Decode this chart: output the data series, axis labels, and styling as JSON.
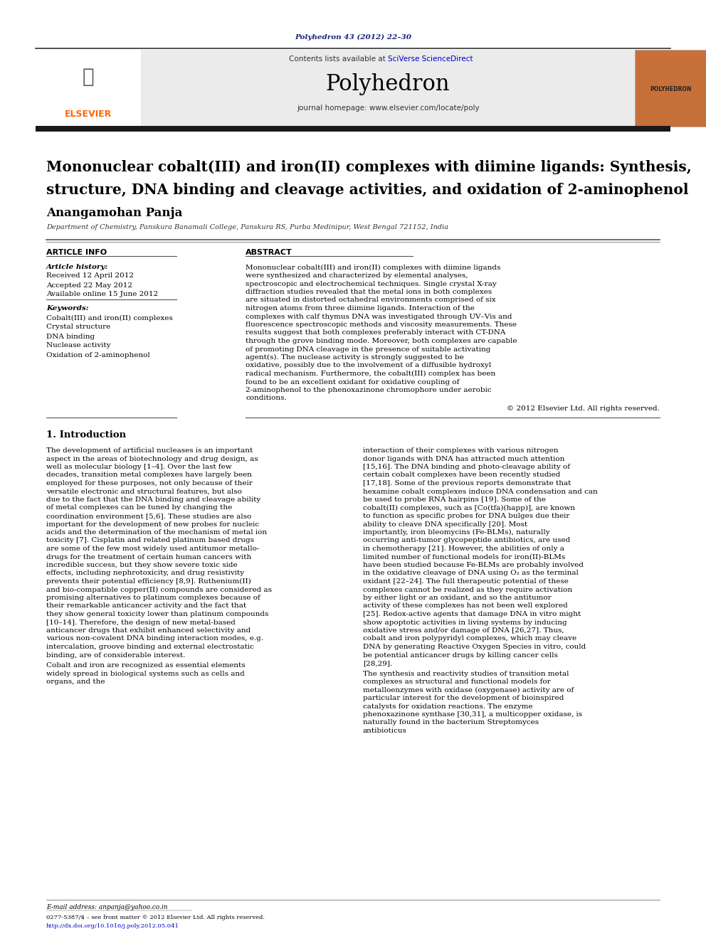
{
  "page_bg": "#ffffff",
  "journal_ref": "Polyhedron 43 (2012) 22–30",
  "journal_ref_color": "#1a237e",
  "journal_name": "Polyhedron",
  "contents_text": "Contents lists available at ",
  "sciverse_text": "SciVerse ScienceDirect",
  "sciverse_color": "#0000cc",
  "homepage_text": "journal homepage: www.elsevier.com/locate/poly",
  "header_bg": "#e8e8e8",
  "header_bar_color": "#2d2d2d",
  "polyhedron_logo_bg": "#c8703a",
  "title": "Mononuclear cobalt(III) and iron(II) complexes with diimine ligands: Synthesis, structure, DNA binding and cleavage activities, and oxidation of 2-aminophenol",
  "author": "Anangamohan Panja",
  "affiliation": "Department of Chemistry, Panskura Banamali College, Panskura RS, Purba Medinipur, West Bengal 721152, India",
  "article_info_heading": "ARTICLE INFO",
  "abstract_heading": "ABSTRACT",
  "article_history_label": "Article history:",
  "received": "Received 12 April 2012",
  "accepted": "Accepted 22 May 2012",
  "available": "Available online 15 June 2012",
  "keywords_label": "Keywords:",
  "keywords": [
    "Cobalt(III) and iron(II) complexes",
    "Crystal structure",
    "DNA binding",
    "Nuclease activity",
    "Oxidation of 2-aminophenol"
  ],
  "abstract_text": "Mononuclear cobalt(III) and iron(II) complexes with diimine ligands were synthesized and characterized by elemental analyses, spectroscopic and electrochemical techniques. Single crystal X-ray diffraction studies revealed that the metal ions in both complexes are situated in distorted octahedral environments comprised of six nitrogen atoms from three diimine ligands. Interaction of the complexes with calf thymus DNA was investigated through UV–Vis and fluorescence spectroscopic methods and viscosity measurements. These results suggest that both complexes preferably interact with CT-DNA through the grove binding mode. Moreover, both complexes are capable of promoting DNA cleavage in the presence of suitable activating agent(s). The nuclease activity is strongly suggested to be oxidative, possibly due to the involvement of a diffusible hydroxyl radical mechanism. Furthermore, the cobalt(III) complex has been found to be an excellent oxidant for oxidative coupling of 2-aminophenol to the phenoxazinone chromophore under aerobic conditions.",
  "copyright_text": "© 2012 Elsevier Ltd. All rights reserved.",
  "section1_title": "1. Introduction",
  "intro_col1": "The development of artificial nucleases is an important aspect in the areas of biotechnology and drug design, as well as molecular biology [1–4]. Over the last few decades, transition metal complexes have largely been employed for these purposes, not only because of their versatile electronic and structural features, but also due to the fact that the DNA binding and cleavage ability of metal complexes can be tuned by changing the coordination environment [5,6]. These studies are also important for the development of new probes for nucleic acids and the determination of the mechanism of metal ion toxicity [7]. Cisplatin and related platinum based drugs are some of the few most widely used antitumor metallo-drugs for the treatment of certain human cancers with incredible success, but they show severe toxic side effects, including nephrotoxicity, and drug resistivity prevents their potential efficiency [8,9]. Ruthenium(II) and bio-compatible copper(II) compounds are considered as promising alternatives to platinum complexes because of their remarkable anticancer activity and the fact that they show general toxicity lower than platinum compounds [10–14]. Therefore, the design of new metal-based anticancer drugs that exhibit enhanced selectivity and various non-covalent DNA binding interaction modes, e.g. intercalation, groove binding and external electrostatic binding, are of considerable interest.\n    Cobalt and iron are recognized as essential elements widely spread in biological systems such as cells and organs, and the",
  "intro_col2": "interaction of their complexes with various nitrogen donor ligands with DNA has attracted much attention [15,16]. The DNA binding and photo-cleavage ability of certain cobalt complexes have been recently studied [17,18]. Some of the previous reports demonstrate that hexamine cobalt complexes induce DNA condensation and can be used to probe RNA hairpins [19]. Some of the cobalt(II) complexes, such as [Co(tfa)(happ)], are known to function as specific probes for DNA bulges due their ability to cleave DNA specifically [20]. Most importantly, iron bleomycins (Fe-BLMs), naturally occurring anti-tumor glycopeptide antibiotics, are used in chemotherapy [21]. However, the abilities of only a limited number of functional models for iron(II)-BLMs have been studied because Fe-BLMs are probably involved in the oxidative cleavage of DNA using O₂ as the terminal oxidant [22–24]. The full therapeutic potential of these complexes cannot be realized as they require activation by either light or an oxidant, and so the antitumor activity of these complexes has not been well explored [25]. Redox-active agents that damage DNA in vitro might show apoptotic activities in living systems by inducing oxidative stress and/or damage of DNA [26,27]. Thus, cobalt and iron polypyridyl complexes, which may cleave DNA by generating Reactive Oxygen Species in vitro, could be potential anticancer drugs by killing cancer cells [28,29].\n    The synthesis and reactivity studies of transition metal complexes as structural and functional models for metalloenzymes with oxidase (oxygenase) activity are of particular interest for the development of bioinspired catalysts for oxidation reactions. The enzyme phenoxazinone synthase [30,31], a multicopper oxidase, is naturally found in the bacterium Streptomyces antibioticus",
  "footer_text1": "E-mail address: anpanja@yahoo.co.in",
  "footer_text2": "0277-5387/$ – see front matter © 2012 Elsevier Ltd. All rights reserved.",
  "footer_text3": "http://dx.doi.org/10.1016/j.poly.2012.05.041"
}
